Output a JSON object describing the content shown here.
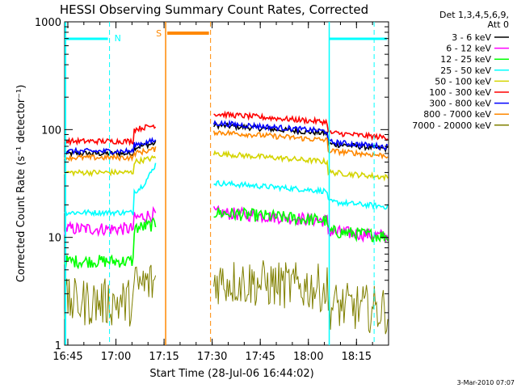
{
  "chart_data": {
    "type": "line",
    "title": "HESSI Observing Summary Count Rates, Corrected",
    "xlabel": "Start Time (28-Jul-06 16:44:02)",
    "ylabel": "Corrected Count Rate (s⁻¹ detector⁻¹)",
    "yscale": "log",
    "ylim": [
      1,
      1000
    ],
    "xlim_minutes_after_start": [
      0,
      101
    ],
    "x_ticks": [
      {
        "label": "16:45",
        "t": 1
      },
      {
        "label": "17:00",
        "t": 16
      },
      {
        "label": "17:15",
        "t": 31
      },
      {
        "label": "17:30",
        "t": 46
      },
      {
        "label": "17:45",
        "t": 61
      },
      {
        "label": "18:00",
        "t": 76
      },
      {
        "label": "18:15",
        "t": 91
      }
    ],
    "y_ticks": [
      {
        "label": "1",
        "v": 1
      },
      {
        "label": "10",
        "v": 10
      },
      {
        "label": "100",
        "v": 100
      },
      {
        "label": "1000",
        "v": 1000
      }
    ],
    "legend": {
      "placement": "right",
      "header": [
        "Det 1,3,4,5,6,9,",
        "Att 0"
      ]
    },
    "series": [
      {
        "name": "3 - 6 keV",
        "color": "#000000",
        "level_before": 60,
        "level_mid": 68,
        "level_after": 110
      },
      {
        "name": "6 - 12 keV",
        "color": "#ff00ff",
        "level_before": 12,
        "level_mid": 15,
        "level_after": 17
      },
      {
        "name": "12 - 25 keV",
        "color": "#00ff00",
        "level_before": 6,
        "level_mid": 12,
        "level_after": 17
      },
      {
        "name": "25 - 50 keV",
        "color": "#00ffff",
        "level_before": 17,
        "level_mid": 27,
        "level_after": 32
      },
      {
        "name": "50 - 100 keV",
        "color": "#d4d400",
        "level_before": 40,
        "level_mid": 50,
        "level_after": 60
      },
      {
        "name": "100 - 300 keV",
        "color": "#ff0000",
        "level_before": 78,
        "level_mid": 100,
        "level_after": 140
      },
      {
        "name": "300 - 800 keV",
        "color": "#0000ff",
        "level_before": 63,
        "level_mid": 72,
        "level_after": 115
      },
      {
        "name": "800 - 7000 keV",
        "color": "#ff8800",
        "level_before": 55,
        "level_mid": 60,
        "level_after": 95
      },
      {
        "name": "7000 - 20000 keV",
        "color": "#808000",
        "level_before": 2.5,
        "level_mid": 3.5,
        "level_after": 4
      }
    ],
    "annotations": [
      {
        "label": "N",
        "color": "#00ffff"
      },
      {
        "label": "S",
        "color": "#ff8800"
      }
    ],
    "footer_date": "3-Mar-2010 07:07"
  }
}
